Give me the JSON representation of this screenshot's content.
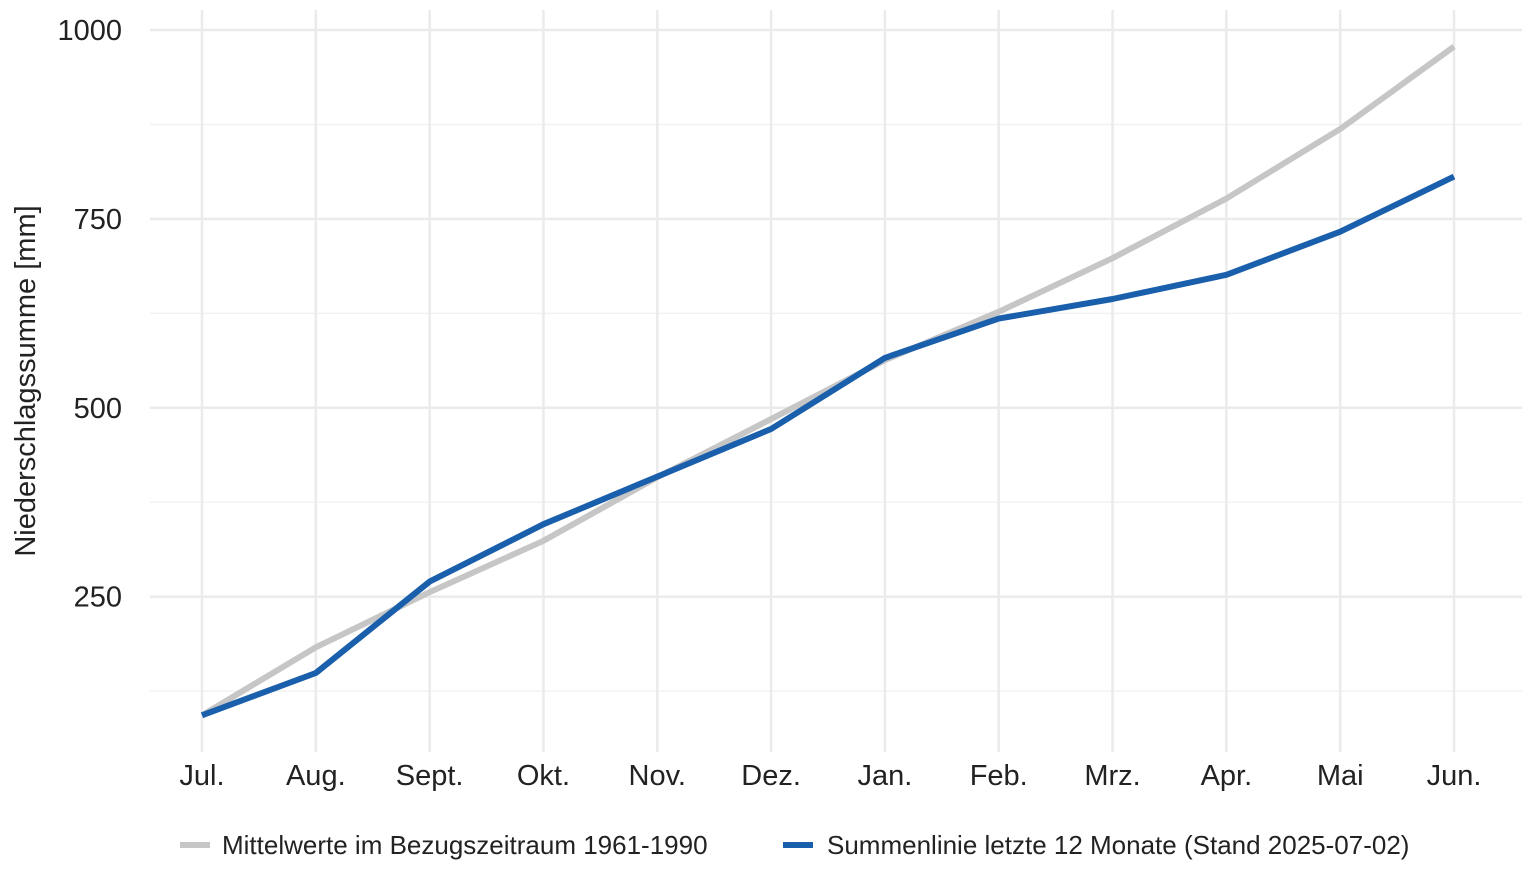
{
  "chart_data": {
    "type": "line",
    "title": "",
    "xlabel": "",
    "ylabel": "Niederschlagssumme [mm]",
    "categories": [
      "Jul.",
      "Aug.",
      "Sept.",
      "Okt.",
      "Nov.",
      "Dez.",
      "Jan.",
      "Feb.",
      "Mrz.",
      "Apr.",
      "Mai",
      "Jun."
    ],
    "y_ticks": [
      "250",
      "500",
      "750",
      "1000"
    ],
    "y_tick_values": [
      250,
      500,
      750,
      1000
    ],
    "ylim": [
      75,
      1000
    ],
    "grid": true,
    "legend_position": "bottom",
    "series": [
      {
        "name": "Mittelwerte im Bezugszeitraum 1961-1990",
        "color": "#c6c6c6",
        "values": [
          93,
          183,
          256,
          324,
          408,
          485,
          563,
          627,
          698,
          777,
          869,
          978
        ]
      },
      {
        "name": "Summenlinie letzte 12 Monate (Stand 2025-07-02)",
        "color": "#1a5fab",
        "values": [
          93,
          149,
          270,
          346,
          409,
          472,
          566,
          618,
          644,
          676,
          733,
          806
        ]
      }
    ]
  }
}
